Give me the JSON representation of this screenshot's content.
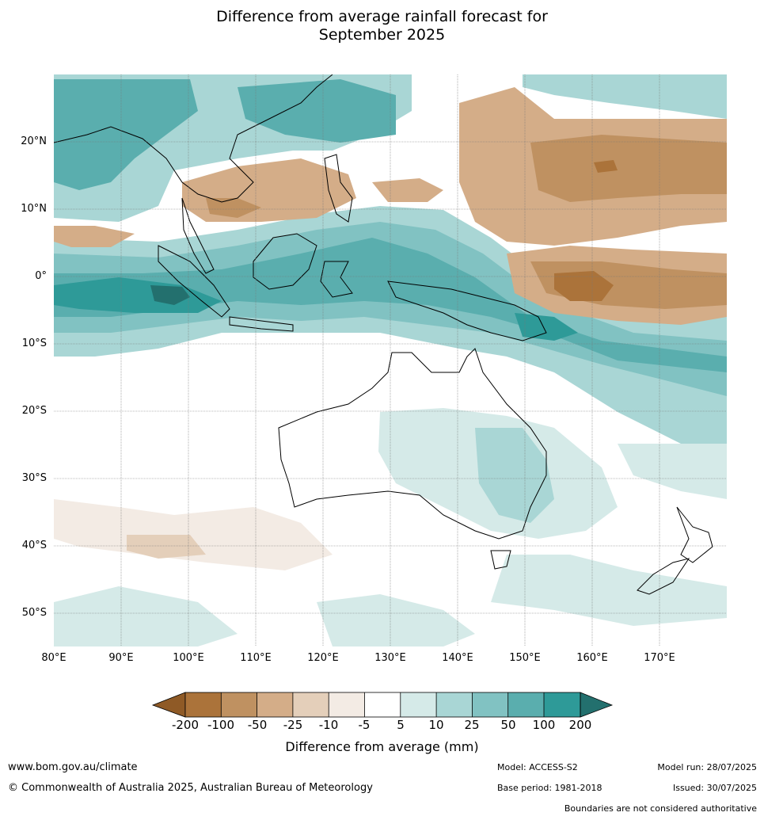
{
  "title_line1": "Difference from average rainfall forecast for",
  "title_line2": "September 2025",
  "lat_labels": [
    "20°N",
    "10°N",
    "0°",
    "10°S",
    "20°S",
    "30°S",
    "40°S",
    "50°S"
  ],
  "lon_labels": [
    "80°E",
    "90°E",
    "100°E",
    "110°E",
    "120°E",
    "130°E",
    "140°E",
    "150°E",
    "160°E",
    "170°E"
  ],
  "colorbar": {
    "title": "Difference from average (mm)",
    "ticks": [
      "-200",
      "-100",
      "-50",
      "-25",
      "-10",
      "-5",
      "5",
      "10",
      "25",
      "50",
      "100",
      "200"
    ],
    "colors": [
      "#8f5a26",
      "#ab733a",
      "#bf9161",
      "#d4ad88",
      "#e4cfba",
      "#f3ebe4",
      "#ffffff",
      "#d5eae8",
      "#a9d6d5",
      "#81c2c2",
      "#5aaeae",
      "#2e9a98",
      "#23706e"
    ]
  },
  "footer": {
    "website": "www.bom.gov.au/climate",
    "copyright": "© Commonwealth of Australia 2025, Australian Bureau of Meteorology",
    "model": "Model: ACCESS-S2",
    "base_period": "Base period: 1981-2018",
    "model_run": "Model run: 28/07/2025",
    "issued": "Issued: 30/07/2025",
    "disclaimer": "Boundaries are not considered authoritative"
  }
}
